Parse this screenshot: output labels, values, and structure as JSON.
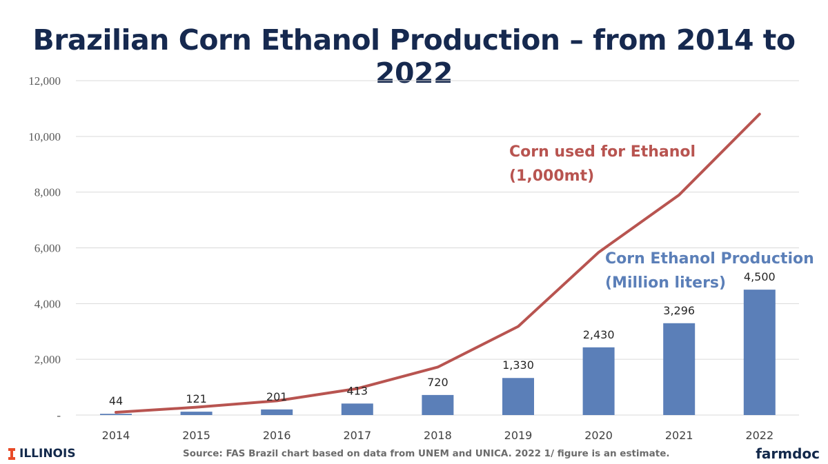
{
  "title": "Brazilian Corn Ethanol Production – from 2014 to 2022",
  "source_note": "Source: FAS Brazil chart based on data from UNEM and UNICA. 2022 1/ figure is an estimate.",
  "logos": {
    "left": "ILLINOIS",
    "right": "farmdoc"
  },
  "colors": {
    "title": "#16294f",
    "bars": "#5b7fb8",
    "line": "#b85450",
    "grid": "#d9d9d9"
  },
  "chart_data": {
    "type": "bar",
    "categories": [
      "2014",
      "2015",
      "2016",
      "2017",
      "2018",
      "2019",
      "2020",
      "2021",
      "2022"
    ],
    "ylim": [
      0,
      12000
    ],
    "yticks": [
      0,
      2000,
      4000,
      6000,
      8000,
      10000,
      12000
    ],
    "ytick_labels": [
      "-",
      "2,000",
      "4,000",
      "6,000",
      "8,000",
      "10,000",
      "12,000"
    ],
    "grid": true,
    "series": [
      {
        "name": "Corn Ethanol Production (Million liters)",
        "type": "bar",
        "values": [
          44,
          121,
          201,
          413,
          720,
          1330,
          2430,
          3296,
          4500
        ],
        "data_labels": [
          "44",
          "121",
          "201",
          "413",
          "720",
          "1,330",
          "2,430",
          "3,296",
          "4,500"
        ]
      },
      {
        "name": "Corn used for Ethanol (1,000mt)",
        "type": "line",
        "values": [
          100,
          280,
          510,
          950,
          1720,
          3180,
          5840,
          7900,
          10800
        ]
      }
    ],
    "annotations": {
      "line_label": [
        "Corn used for Ethanol",
        "(1,000mt)"
      ],
      "bar_label": [
        "Corn Ethanol Production",
        "(Million liters)"
      ]
    }
  }
}
